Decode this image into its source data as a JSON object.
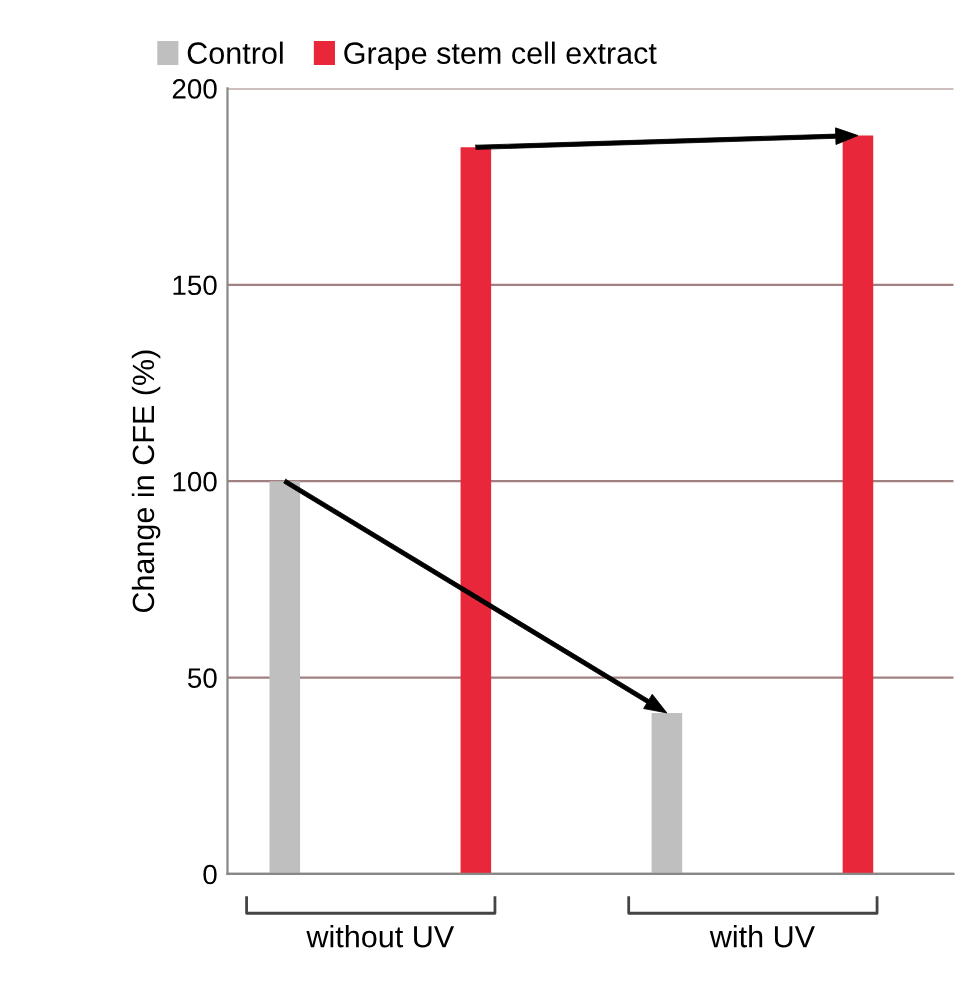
{
  "chart_data": {
    "type": "bar",
    "categories": [
      "without UV",
      "with UV"
    ],
    "ylabel": "Change in CFE (%)",
    "series": [
      {
        "name": "Control",
        "color": "#bfbfbf",
        "values": [
          100,
          41
        ]
      },
      {
        "name": "Grape stem cell extract",
        "color": "#e8283a",
        "values": [
          185,
          188
        ]
      }
    ],
    "ylim": [
      0,
      200
    ],
    "yticks": [
      0,
      50,
      100,
      150,
      200
    ],
    "grid": "y",
    "legend": "top left"
  }
}
